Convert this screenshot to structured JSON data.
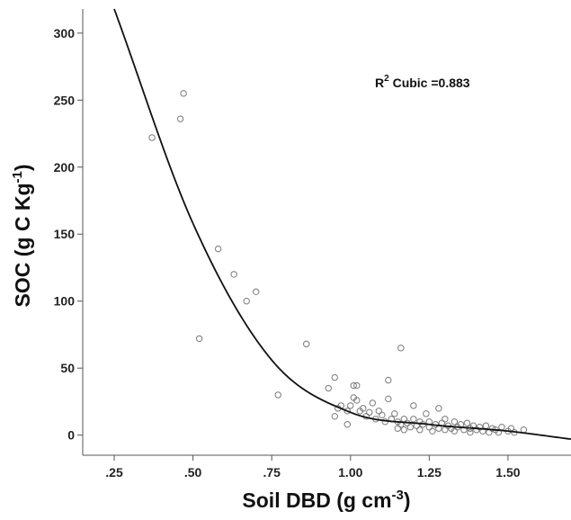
{
  "chart_data": {
    "type": "scatter",
    "xlabel": "Soil DBD (g cm",
    "xlabel_sup": "-3",
    "xlabel_end": ")",
    "ylabel": "SOC (g C Kg",
    "ylabel_sup": "-1",
    "ylabel_end": ")",
    "annotation": {
      "prefix": "R",
      "sup": "2",
      "text": " Cubic =0.883"
    },
    "xlim": [
      0.15,
      1.7
    ],
    "ylim": [
      -15,
      318
    ],
    "x_ticks": [
      0.25,
      0.5,
      0.75,
      1.0,
      1.25,
      1.5
    ],
    "x_tick_labels": [
      ".25",
      ".50",
      ".75",
      "1.00",
      "1.25",
      "1.50"
    ],
    "y_ticks": [
      0,
      50,
      100,
      150,
      200,
      250,
      300
    ],
    "y_tick_labels": [
      "0",
      "50",
      "100",
      "150",
      "200",
      "250",
      "300"
    ],
    "grid": false,
    "marker_color": "#7a7a7a",
    "line_color": "#111111",
    "fit": {
      "type": "cubic",
      "points": [
        [
          0.25,
          318
        ],
        [
          0.5,
          158
        ],
        [
          0.75,
          56
        ],
        [
          1.0,
          17
        ],
        [
          1.25,
          8
        ],
        [
          1.5,
          3
        ],
        [
          1.7,
          -3
        ]
      ]
    },
    "points": [
      [
        0.37,
        222
      ],
      [
        0.46,
        236
      ],
      [
        0.47,
        255
      ],
      [
        0.52,
        72
      ],
      [
        0.58,
        139
      ],
      [
        0.63,
        120
      ],
      [
        0.67,
        100
      ],
      [
        0.7,
        107
      ],
      [
        0.77,
        30
      ],
      [
        0.86,
        68
      ],
      [
        0.93,
        35
      ],
      [
        0.95,
        43
      ],
      [
        0.95,
        14
      ],
      [
        0.96,
        20
      ],
      [
        0.97,
        22
      ],
      [
        0.99,
        8
      ],
      [
        0.99,
        18
      ],
      [
        1.0,
        22
      ],
      [
        1.01,
        37
      ],
      [
        1.02,
        37
      ],
      [
        1.01,
        28
      ],
      [
        1.02,
        26
      ],
      [
        1.03,
        18
      ],
      [
        1.04,
        20
      ],
      [
        1.05,
        14
      ],
      [
        1.06,
        17
      ],
      [
        1.07,
        24
      ],
      [
        1.08,
        12
      ],
      [
        1.09,
        18
      ],
      [
        1.1,
        15
      ],
      [
        1.11,
        10
      ],
      [
        1.12,
        41
      ],
      [
        1.12,
        27
      ],
      [
        1.13,
        12
      ],
      [
        1.14,
        16
      ],
      [
        1.15,
        10
      ],
      [
        1.15,
        5
      ],
      [
        1.16,
        65
      ],
      [
        1.16,
        8
      ],
      [
        1.17,
        12
      ],
      [
        1.17,
        4
      ],
      [
        1.18,
        9
      ],
      [
        1.19,
        6
      ],
      [
        1.2,
        12
      ],
      [
        1.2,
        22
      ],
      [
        1.21,
        7
      ],
      [
        1.22,
        10
      ],
      [
        1.22,
        4
      ],
      [
        1.23,
        8
      ],
      [
        1.24,
        16
      ],
      [
        1.25,
        6
      ],
      [
        1.25,
        10
      ],
      [
        1.26,
        3
      ],
      [
        1.27,
        8
      ],
      [
        1.28,
        20
      ],
      [
        1.28,
        5
      ],
      [
        1.29,
        9
      ],
      [
        1.3,
        4
      ],
      [
        1.3,
        12
      ],
      [
        1.31,
        7
      ],
      [
        1.32,
        5
      ],
      [
        1.33,
        10
      ],
      [
        1.33,
        3
      ],
      [
        1.34,
        6
      ],
      [
        1.35,
        8
      ],
      [
        1.36,
        4
      ],
      [
        1.37,
        9
      ],
      [
        1.38,
        5
      ],
      [
        1.38,
        2
      ],
      [
        1.39,
        7
      ],
      [
        1.4,
        4
      ],
      [
        1.41,
        6
      ],
      [
        1.42,
        3
      ],
      [
        1.43,
        7
      ],
      [
        1.44,
        2
      ],
      [
        1.45,
        5
      ],
      [
        1.46,
        4
      ],
      [
        1.47,
        2
      ],
      [
        1.48,
        6
      ],
      [
        1.5,
        3
      ],
      [
        1.51,
        5
      ],
      [
        1.52,
        2
      ],
      [
        1.55,
        4
      ]
    ]
  }
}
